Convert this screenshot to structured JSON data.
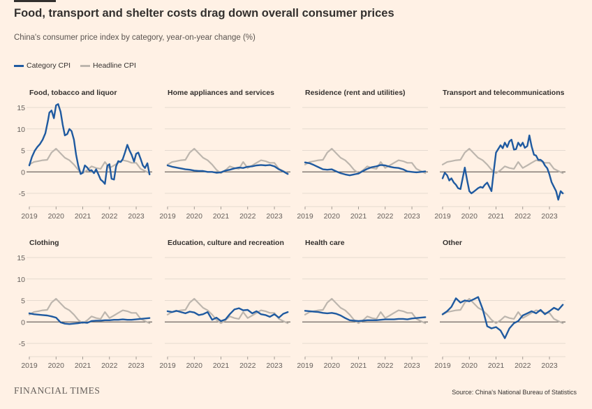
{
  "header": {
    "title": "Food, transport and shelter costs drag down overall consumer prices",
    "subtitle": "China's consumer price index by category, year-on-year change (%)"
  },
  "legend": {
    "category_label": "Category CPI",
    "headline_label": "Headline CPI",
    "category_color": "#1f5aa0",
    "headline_color": "#bdb6ae"
  },
  "footer": {
    "publisher": "FINANCIAL TIMES",
    "source": "Source: China's National Bureau of Statistics"
  },
  "colors": {
    "background": "#fff1e5",
    "grid": "#dcd2c8",
    "zero_line": "#4a4643"
  },
  "chart_data": {
    "type": "line",
    "x_unit": "year",
    "xlim": [
      2019.0,
      2023.6
    ],
    "x_ticks": [
      2019,
      2020,
      2021,
      2022,
      2023
    ],
    "y_ticks": [
      15,
      10,
      5,
      0,
      -5
    ],
    "ylim": [
      -8,
      16.5
    ],
    "headline_series": {
      "name": "Headline CPI",
      "x": [
        2019.0,
        2019.17,
        2019.33,
        2019.5,
        2019.67,
        2019.83,
        2020.0,
        2020.17,
        2020.33,
        2020.5,
        2020.67,
        2020.83,
        2021.0,
        2021.17,
        2021.33,
        2021.5,
        2021.67,
        2021.83,
        2022.0,
        2022.17,
        2022.33,
        2022.5,
        2022.67,
        2022.83,
        2023.0,
        2023.17,
        2023.33,
        2023.5
      ],
      "values": [
        1.7,
        2.3,
        2.5,
        2.7,
        2.8,
        4.5,
        5.4,
        4.3,
        3.3,
        2.7,
        1.7,
        0.5,
        -0.3,
        0.4,
        1.3,
        0.9,
        0.7,
        2.3,
        0.9,
        1.5,
        2.1,
        2.7,
        2.5,
        2.1,
        2.1,
        0.7,
        0.2,
        -0.3
      ]
    },
    "panels": [
      {
        "title": "Food, tobacco and liquor",
        "series_name": "Category CPI",
        "x": [
          2019.0,
          2019.1,
          2019.2,
          2019.3,
          2019.4,
          2019.5,
          2019.6,
          2019.7,
          2019.75,
          2019.83,
          2019.92,
          2020.0,
          2020.08,
          2020.17,
          2020.25,
          2020.33,
          2020.42,
          2020.5,
          2020.58,
          2020.67,
          2020.75,
          2020.83,
          2020.92,
          2021.0,
          2021.08,
          2021.17,
          2021.25,
          2021.33,
          2021.42,
          2021.5,
          2021.58,
          2021.67,
          2021.75,
          2021.83,
          2021.92,
          2022.0,
          2022.08,
          2022.17,
          2022.25,
          2022.33,
          2022.42,
          2022.5,
          2022.58,
          2022.67,
          2022.75,
          2022.83,
          2022.92,
          2023.0,
          2023.08,
          2023.17,
          2023.25,
          2023.33,
          2023.42,
          2023.5
        ],
        "values": [
          1.5,
          3.5,
          4.9,
          5.8,
          6.5,
          7.5,
          9.0,
          12.0,
          13.8,
          14.3,
          12.5,
          15.5,
          15.8,
          14.0,
          11.0,
          8.5,
          8.8,
          10.0,
          9.5,
          7.5,
          4.0,
          1.5,
          -0.5,
          -0.2,
          1.5,
          1.0,
          0.3,
          0.4,
          -0.3,
          0.6,
          -0.5,
          -1.8,
          -2.2,
          -2.8,
          1.4,
          1.8,
          -1.6,
          -1.8,
          1.3,
          2.5,
          2.3,
          3.0,
          4.5,
          6.3,
          5.0,
          4.0,
          2.4,
          4.2,
          4.5,
          3.0,
          1.5,
          0.9,
          2.0,
          -0.6
        ]
      },
      {
        "title": "Home appliances and services",
        "series_name": "Category CPI",
        "x": [
          2019.0,
          2019.17,
          2019.33,
          2019.5,
          2019.67,
          2019.83,
          2020.0,
          2020.17,
          2020.33,
          2020.5,
          2020.67,
          2020.83,
          2021.0,
          2021.17,
          2021.33,
          2021.5,
          2021.67,
          2021.83,
          2022.0,
          2022.17,
          2022.33,
          2022.5,
          2022.67,
          2022.83,
          2023.0,
          2023.17,
          2023.33,
          2023.5
        ],
        "values": [
          1.5,
          1.2,
          1.0,
          0.8,
          0.6,
          0.5,
          0.3,
          0.2,
          0.2,
          0.0,
          0.0,
          -0.2,
          -0.1,
          0.3,
          0.5,
          0.8,
          1.0,
          0.9,
          1.2,
          1.3,
          1.5,
          1.6,
          1.5,
          1.6,
          1.3,
          0.6,
          0.1,
          -0.5
        ]
      },
      {
        "title": "Residence (rent and utilities)",
        "series_name": "Category CPI",
        "x": [
          2019.0,
          2019.17,
          2019.33,
          2019.5,
          2019.67,
          2019.83,
          2020.0,
          2020.17,
          2020.33,
          2020.5,
          2020.67,
          2020.83,
          2021.0,
          2021.17,
          2021.33,
          2021.5,
          2021.67,
          2021.83,
          2022.0,
          2022.17,
          2022.33,
          2022.5,
          2022.67,
          2022.83,
          2023.0,
          2023.17,
          2023.33,
          2023.5
        ],
        "values": [
          2.2,
          2.0,
          1.6,
          1.1,
          0.6,
          0.5,
          0.6,
          0.1,
          -0.3,
          -0.6,
          -0.8,
          -0.6,
          -0.4,
          0.2,
          0.7,
          1.1,
          1.3,
          1.6,
          1.5,
          1.2,
          1.0,
          0.9,
          0.6,
          0.1,
          0.0,
          -0.1,
          0.0,
          0.1
        ]
      },
      {
        "title": "Transport and telecommunications",
        "series_name": "Category CPI",
        "x": [
          2019.0,
          2019.08,
          2019.17,
          2019.25,
          2019.33,
          2019.42,
          2019.5,
          2019.58,
          2019.67,
          2019.75,
          2019.83,
          2019.92,
          2020.0,
          2020.08,
          2020.17,
          2020.25,
          2020.33,
          2020.42,
          2020.5,
          2020.58,
          2020.67,
          2020.75,
          2020.83,
          2020.92,
          2021.0,
          2021.08,
          2021.17,
          2021.25,
          2021.33,
          2021.42,
          2021.5,
          2021.58,
          2021.67,
          2021.75,
          2021.83,
          2021.92,
          2022.0,
          2022.08,
          2022.17,
          2022.25,
          2022.33,
          2022.42,
          2022.5,
          2022.58,
          2022.67,
          2022.75,
          2022.83,
          2022.92,
          2023.0,
          2023.08,
          2023.17,
          2023.25,
          2023.33,
          2023.42,
          2023.5
        ],
        "values": [
          -1.5,
          -0.2,
          -0.8,
          -2.0,
          -1.5,
          -2.5,
          -3.0,
          -3.8,
          -4.0,
          -1.5,
          1.0,
          -2.0,
          -4.5,
          -5.0,
          -4.6,
          -4.2,
          -3.8,
          -3.5,
          -3.7,
          -3.0,
          -2.5,
          -3.5,
          -4.5,
          0.5,
          4.5,
          5.3,
          6.2,
          5.5,
          6.8,
          5.8,
          7.1,
          7.5,
          5.2,
          5.3,
          6.8,
          6.0,
          6.8,
          5.6,
          6.0,
          8.5,
          6.0,
          4.0,
          3.8,
          2.8,
          2.8,
          2.4,
          1.5,
          0.8,
          -0.6,
          -2.4,
          -3.5,
          -4.5,
          -6.5,
          -4.5,
          -5.0
        ]
      },
      {
        "title": "Clothing",
        "series_name": "Category CPI",
        "x": [
          2019.0,
          2019.17,
          2019.33,
          2019.5,
          2019.67,
          2019.83,
          2020.0,
          2020.17,
          2020.33,
          2020.5,
          2020.67,
          2020.83,
          2021.0,
          2021.17,
          2021.33,
          2021.5,
          2021.67,
          2021.83,
          2022.0,
          2022.17,
          2022.33,
          2022.5,
          2022.67,
          2022.83,
          2023.0,
          2023.17,
          2023.33,
          2023.5
        ],
        "values": [
          2.0,
          1.8,
          1.7,
          1.6,
          1.5,
          1.3,
          1.0,
          -0.1,
          -0.4,
          -0.5,
          -0.4,
          -0.3,
          -0.1,
          -0.2,
          0.2,
          0.3,
          0.3,
          0.4,
          0.4,
          0.5,
          0.5,
          0.6,
          0.5,
          0.5,
          0.6,
          0.7,
          0.8,
          0.9
        ]
      },
      {
        "title": "Education, culture and recreation",
        "series_name": "Category CPI",
        "x": [
          2019.0,
          2019.17,
          2019.33,
          2019.5,
          2019.67,
          2019.83,
          2020.0,
          2020.17,
          2020.33,
          2020.5,
          2020.67,
          2020.83,
          2021.0,
          2021.17,
          2021.33,
          2021.5,
          2021.67,
          2021.83,
          2022.0,
          2022.17,
          2022.33,
          2022.5,
          2022.67,
          2022.83,
          2023.0,
          2023.17,
          2023.33,
          2023.5
        ],
        "values": [
          2.5,
          2.3,
          2.6,
          2.3,
          2.0,
          2.4,
          2.2,
          1.6,
          1.8,
          2.3,
          0.5,
          1.0,
          0.2,
          0.6,
          1.8,
          2.9,
          3.2,
          2.7,
          2.8,
          2.0,
          2.5,
          1.8,
          1.6,
          1.2,
          1.8,
          1.0,
          1.9,
          2.3
        ]
      },
      {
        "title": "Health care",
        "series_name": "Category CPI",
        "x": [
          2019.0,
          2019.17,
          2019.33,
          2019.5,
          2019.67,
          2019.83,
          2020.0,
          2020.17,
          2020.33,
          2020.5,
          2020.67,
          2020.83,
          2021.0,
          2021.17,
          2021.33,
          2021.5,
          2021.67,
          2021.83,
          2022.0,
          2022.17,
          2022.33,
          2022.5,
          2022.67,
          2022.83,
          2023.0,
          2023.17,
          2023.33,
          2023.5
        ],
        "values": [
          2.6,
          2.5,
          2.4,
          2.3,
          2.1,
          2.0,
          2.1,
          1.9,
          1.5,
          0.9,
          0.4,
          0.3,
          0.2,
          0.3,
          0.4,
          0.4,
          0.4,
          0.5,
          0.6,
          0.6,
          0.6,
          0.7,
          0.7,
          0.6,
          0.8,
          0.9,
          1.0,
          1.1
        ]
      },
      {
        "title": "Other",
        "series_name": "Category CPI",
        "x": [
          2019.0,
          2019.17,
          2019.33,
          2019.5,
          2019.67,
          2019.83,
          2020.0,
          2020.17,
          2020.33,
          2020.5,
          2020.67,
          2020.83,
          2021.0,
          2021.17,
          2021.33,
          2021.5,
          2021.67,
          2021.83,
          2022.0,
          2022.17,
          2022.33,
          2022.5,
          2022.67,
          2022.83,
          2023.0,
          2023.17,
          2023.33,
          2023.5
        ],
        "values": [
          1.8,
          2.5,
          3.5,
          5.5,
          4.5,
          5.0,
          4.8,
          5.3,
          5.8,
          3.0,
          -1.0,
          -1.5,
          -1.2,
          -2.0,
          -3.8,
          -1.5,
          -0.3,
          0.2,
          1.5,
          2.0,
          2.5,
          2.0,
          2.8,
          1.8,
          2.5,
          3.3,
          2.8,
          4.0
        ]
      }
    ]
  }
}
